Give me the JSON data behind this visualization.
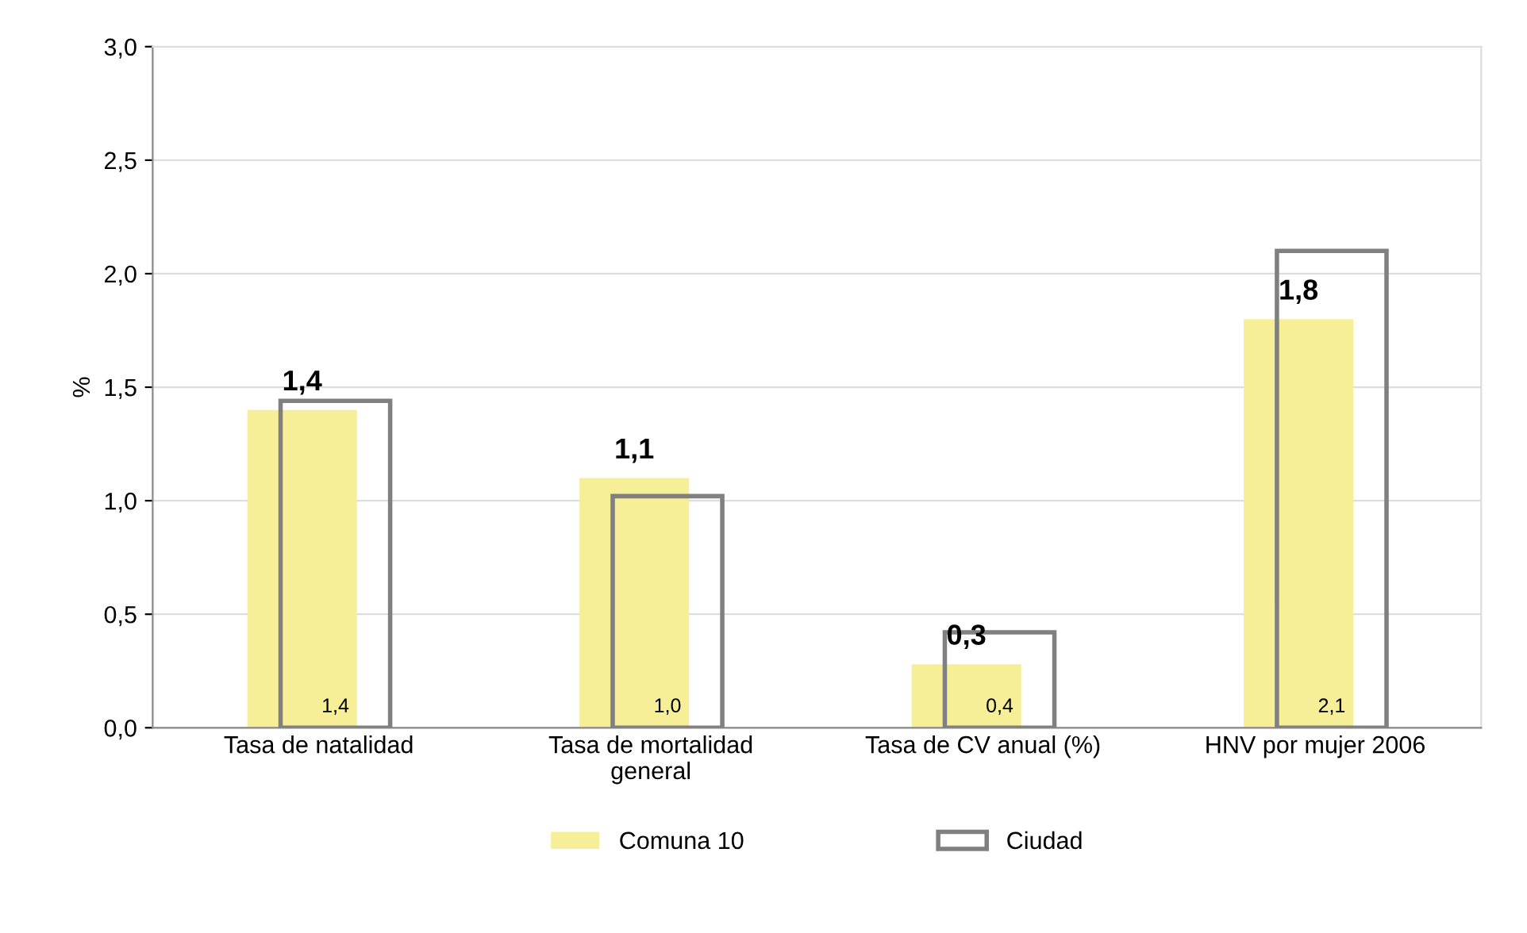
{
  "chart_data": {
    "type": "bar",
    "ylabel": "%",
    "categories": [
      "Tasa de natalidad",
      "Tasa de mortalidad\ngeneral",
      "Tasa de CV anual (%)",
      "HNV por mujer 2006"
    ],
    "series": [
      {
        "name": "Comuna 10",
        "color": "#f7ef98",
        "values": [
          1.4,
          1.1,
          0.28,
          1.8
        ],
        "value_labels": [
          "1,4",
          "1,1",
          "0,3",
          "1,8"
        ]
      },
      {
        "name": "Ciudad",
        "color": "#808080",
        "values": [
          1.44,
          1.02,
          0.42,
          2.1
        ],
        "value_labels": [
          "1,4",
          "1,0",
          "0,4",
          "2,1"
        ]
      }
    ],
    "ylim": [
      0,
      3.0
    ],
    "yticks": [
      {
        "value": 0,
        "label": "0,0"
      },
      {
        "value": 0.5,
        "label": "0,5"
      },
      {
        "value": 1.0,
        "label": "1,0"
      },
      {
        "value": 1.5,
        "label": "1,5"
      },
      {
        "value": 2.0,
        "label": "2,0"
      },
      {
        "value": 2.5,
        "label": "2,5"
      },
      {
        "value": 3.0,
        "label": "3,0"
      }
    ],
    "grid": "y",
    "legend": "bottom"
  }
}
